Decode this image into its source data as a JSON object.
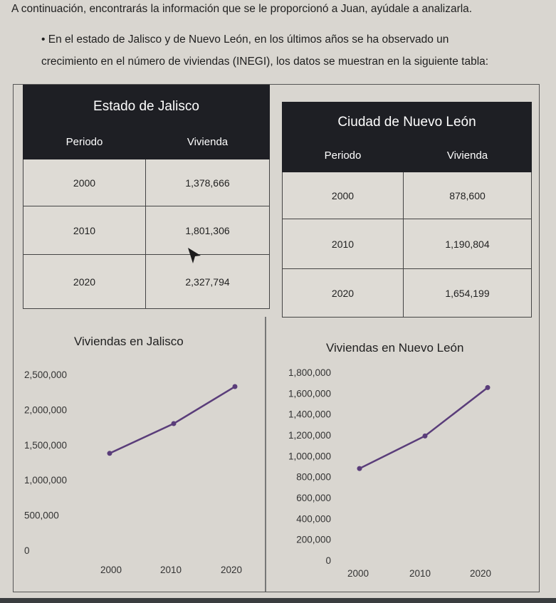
{
  "text": {
    "intro": "A continuación, encontrarás la información que se le proporcionó a Juan, ayúdale a analizarla.",
    "bullet_line1": "• En el estado de Jalisco y de Nuevo León, en los últimos años se ha observado un",
    "bullet_line2": "crecimiento en el número de viviendas (INEGI), los datos se muestran en la siguiente tabla:"
  },
  "table_jalisco": {
    "title": "Estado de Jalisco",
    "col_periodo": "Periodo",
    "col_vivienda": "Vivienda",
    "rows": [
      {
        "periodo": "2000",
        "vivienda": "1,378,666"
      },
      {
        "periodo": "2010",
        "vivienda": "1,801,306"
      },
      {
        "periodo": "2020",
        "vivienda": "2,327,794"
      }
    ]
  },
  "table_nuevo_leon": {
    "title": "Ciudad de Nuevo León",
    "col_periodo": "Periodo",
    "col_vivienda": "Vivienda",
    "rows": [
      {
        "periodo": "2000",
        "vivienda": "878,600"
      },
      {
        "periodo": "2010",
        "vivienda": "1,190,804"
      },
      {
        "periodo": "2020",
        "vivienda": "1,654,199"
      }
    ]
  },
  "chart_data": [
    {
      "type": "line",
      "title": "Viviendas en Jalisco",
      "categories": [
        "2000",
        "2010",
        "2020"
      ],
      "values": [
        1378666,
        1801306,
        2327794
      ],
      "yticks": [
        "0",
        "500,000",
        "1,000,000",
        "1,500,000",
        "2,000,000",
        "2,500,000"
      ],
      "ylim": [
        0,
        2500000
      ],
      "color": "#5a3d7a",
      "grid": false
    },
    {
      "type": "line",
      "title": "Viviendas en Nuevo León",
      "categories": [
        "2000",
        "2010",
        "2020"
      ],
      "values": [
        878600,
        1190804,
        1654199
      ],
      "yticks": [
        "0",
        "200,000",
        "400,000",
        "600,000",
        "800,000",
        "1,000,000",
        "1,200,000",
        "1,400,000",
        "1,600,000",
        "1,800,000"
      ],
      "ylim": [
        0,
        1800000
      ],
      "color": "#5a3d7a",
      "grid": false
    }
  ]
}
